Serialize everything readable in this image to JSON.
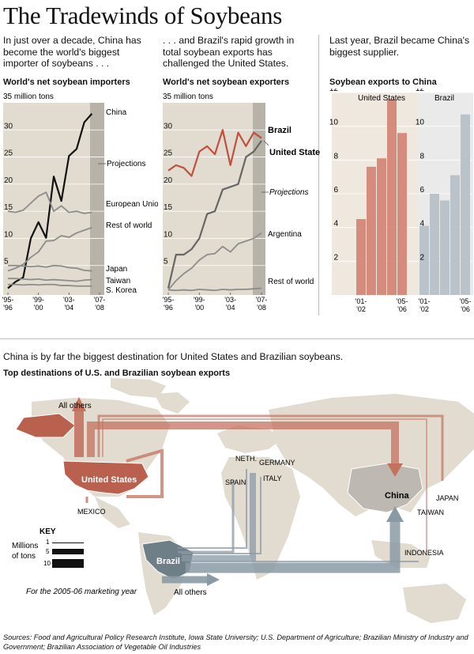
{
  "title": "The Tradewinds of Soybeans",
  "intro": {
    "col1": "In just over a decade, China has become the world's biggest importer of soybeans . . .",
    "col2": ". . . and Brazil's rapid growth in total soybean exports has challenged the United States.",
    "col3": "Last year, Brazil became China's biggest supplier."
  },
  "section2_text": "China is by far the biggest destination for United States and Brazilian soybeans.",
  "map": {
    "title": "Top destinations of U.S. and Brazilian soybean exports",
    "labels": {
      "all_others_top": "All others",
      "united_states": "United States",
      "mexico": "MEXICO",
      "neth": "NETH.",
      "germany": "GERMANY",
      "spain": "SPAIN",
      "italy": "ITALY",
      "china": "China",
      "japan": "JAPAN",
      "taiwan": "TAIWAN",
      "indonesia": "INDONESIA",
      "brazil": "Brazil",
      "all_others_bottom": "All others"
    },
    "key": {
      "title": "KEY",
      "unit_line1": "Millions",
      "unit_line2": "of tons",
      "values": [
        "1",
        "5",
        "10"
      ]
    },
    "note": "For the 2005-06 marketing year",
    "colors": {
      "us": "#c4725f",
      "brazil": "#8a9aa5",
      "land": "#e2dbcf",
      "ocean": "#ffffff"
    }
  },
  "sources": "Sources: Food and Agricultural Policy Research Institute, Iowa State University; U.S. Department of Agriculture; Brazilian Ministry of Industry and Government; Brazilian Association of Vegetable Oil Industries",
  "chart_data": [
    {
      "type": "line",
      "title": "World's net soybean importers",
      "ylabel": "35 million tons",
      "ylim": [
        0,
        35
      ],
      "yticks": [
        5,
        10,
        15,
        20,
        25,
        30
      ],
      "x": [
        "'95-'96",
        "'96-'97",
        "'97-'98",
        "'98-'99",
        "'99-'00",
        "'00-'01",
        "'01-'02",
        "'02-'03",
        "'03-'04",
        "'04-'05",
        "'05-'06",
        "'06-'07",
        "'07-'08"
      ],
      "xtick_labels": [
        "'95-'96",
        "'99-'00",
        "'03-'04",
        "'07-'08"
      ],
      "projection_from": "'06-'07",
      "projection_label": "Projections",
      "series": [
        {
          "name": "China",
          "color": "#111111",
          "values": [
            0.8,
            2.0,
            2.8,
            10.0,
            13.0,
            10.1,
            21.4,
            16.9,
            25.2,
            26.5,
            31.4,
            33.0,
            null
          ]
        },
        {
          "name": "European Union",
          "color": "#8c8c8c",
          "values": [
            15.0,
            14.8,
            15.2,
            16.5,
            17.8,
            18.5,
            15.0,
            16.0,
            14.8,
            15.0,
            14.6,
            14.8,
            null
          ]
        },
        {
          "name": "Rest of world",
          "color": "#8c8c8c",
          "values": [
            4.0,
            4.5,
            5.2,
            6.5,
            7.5,
            9.5,
            9.6,
            10.5,
            10.2,
            11.0,
            11.5,
            12.0,
            null
          ]
        },
        {
          "name": "Japan",
          "color": "#8c8c8c",
          "values": [
            5.0,
            5.0,
            4.9,
            4.8,
            4.9,
            4.7,
            5.0,
            4.9,
            4.6,
            4.5,
            4.1,
            4.0,
            null
          ]
        },
        {
          "name": "Taiwan",
          "color": "#8c8c8c",
          "values": [
            2.6,
            2.6,
            2.5,
            2.4,
            2.5,
            2.3,
            2.4,
            2.3,
            2.2,
            2.1,
            2.3,
            2.4,
            null
          ]
        },
        {
          "name": "S. Korea",
          "color": "#8c8c8c",
          "values": [
            1.5,
            1.5,
            1.4,
            1.5,
            1.4,
            1.5,
            1.5,
            1.3,
            1.3,
            1.2,
            1.2,
            1.2,
            null
          ]
        }
      ]
    },
    {
      "type": "line",
      "title": "World's net soybean exporters",
      "ylabel": "35 million tons",
      "ylim": [
        0,
        35
      ],
      "yticks": [
        5,
        10,
        15,
        20,
        25,
        30
      ],
      "x": [
        "'95-'96",
        "'96-'97",
        "'97-'98",
        "'98-'99",
        "'99-'00",
        "'00-'01",
        "'01-'02",
        "'02-'03",
        "'03-'04",
        "'04-'05",
        "'05-'06",
        "'06-'07",
        "'07-'08"
      ],
      "xtick_labels": [
        "'95-'96",
        "'99-'00",
        "'03-'04",
        "'07-'08"
      ],
      "projection_from": "'06-'07",
      "projection_label": "Projections",
      "series": [
        {
          "name": "Brazil",
          "color": "#c0503d",
          "values": [
            22.5,
            23.5,
            23.0,
            21.5,
            26.0,
            27.0,
            25.5,
            30.0,
            23.5,
            29.5,
            27.0,
            29.5,
            28.5
          ]
        },
        {
          "name": "United States",
          "color": "#666666",
          "values": [
            0.8,
            7.0,
            7.0,
            8.0,
            10.0,
            14.5,
            15.0,
            19.0,
            19.5,
            20.0,
            25.0,
            26.0,
            28.0
          ]
        },
        {
          "name": "Argentina",
          "color": "#8c8c8c",
          "values": [
            0.5,
            2.2,
            3.5,
            4.5,
            6.0,
            7.0,
            7.2,
            8.5,
            7.5,
            9.0,
            9.5,
            10.0,
            11.0
          ]
        },
        {
          "name": "Rest of world",
          "color": "#8c8c8c",
          "values": [
            0.5,
            0.4,
            0.5,
            0.4,
            0.6,
            0.5,
            0.4,
            0.6,
            0.5,
            0.6,
            0.6,
            0.7,
            0.8
          ]
        }
      ]
    },
    {
      "type": "bar",
      "title": "Soybean exports to China",
      "ylim": [
        0,
        12
      ],
      "yticks": [
        2,
        4,
        6,
        8,
        10,
        12
      ],
      "categories": [
        "'01-'02",
        "'02-'03",
        "'03-'04",
        "'04-'05",
        "'05-'06"
      ],
      "xtick_labels": [
        "'01-'02",
        "'05-'06"
      ],
      "series": [
        {
          "name": "United States",
          "color": "#d58c7c",
          "values": [
            4.5,
            7.6,
            8.1,
            11.6,
            9.6
          ]
        },
        {
          "name": "Brazil",
          "color": "#b9c3c9",
          "values": [
            4.1,
            6.0,
            5.6,
            7.1,
            10.7
          ]
        }
      ]
    }
  ]
}
